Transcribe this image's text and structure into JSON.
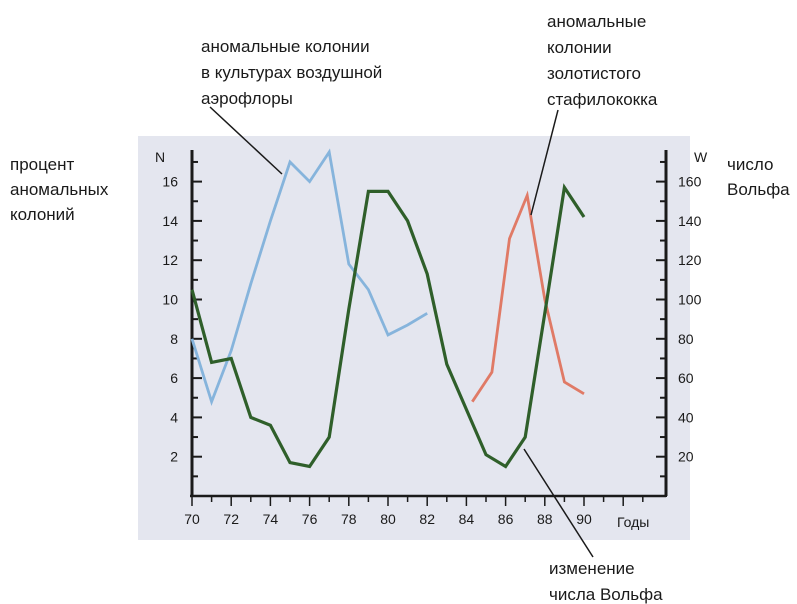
{
  "chart_data": {
    "type": "line",
    "x": [
      70,
      71,
      72,
      73,
      74,
      75,
      76,
      77,
      78,
      79,
      80,
      81,
      82,
      83,
      84,
      85,
      86,
      87,
      88,
      89,
      90
    ],
    "x_ticks": [
      "70",
      "72",
      "74",
      "76",
      "78",
      "80",
      "82",
      "84",
      "86",
      "88",
      "90"
    ],
    "xlabel": "Годы",
    "xlim": [
      70,
      93
    ],
    "left_axis": {
      "unit": "N",
      "label": [
        "процент",
        "аномальных",
        "колоний"
      ],
      "ticks": [
        "2",
        "4",
        "6",
        "8",
        "10",
        "12",
        "14",
        "16"
      ],
      "ylim": [
        0,
        17.5
      ]
    },
    "right_axis": {
      "unit": "W",
      "label": [
        "число",
        "Вольфа"
      ],
      "ticks": [
        "20",
        "40",
        "60",
        "80",
        "100",
        "120",
        "140",
        "160"
      ],
      "ylim": [
        0,
        175
      ]
    },
    "series": [
      {
        "name": [
          "аномальные колонии",
          "в культурах воздушной",
          "аэрофлоры"
        ],
        "axis": "left",
        "color": "#86b4dc",
        "points": [
          [
            70,
            8.0
          ],
          [
            71,
            4.8
          ],
          [
            72,
            7.4
          ],
          [
            73,
            10.8
          ],
          [
            74,
            14.0
          ],
          [
            75,
            17.0
          ],
          [
            76,
            16.0
          ],
          [
            77,
            17.5
          ],
          [
            78,
            11.8
          ],
          [
            79,
            10.5
          ],
          [
            80,
            8.2
          ],
          [
            81,
            8.7
          ],
          [
            82,
            9.3
          ]
        ]
      },
      {
        "name": [
          "аномальные",
          "колонии",
          "золотистого",
          "стафилококка"
        ],
        "axis": "left",
        "color": "#e07a66",
        "points": [
          [
            84.3,
            4.8
          ],
          [
            85.3,
            6.3
          ],
          [
            86.2,
            13.1
          ],
          [
            87.1,
            15.3
          ],
          [
            88,
            10.0
          ],
          [
            89,
            5.8
          ],
          [
            90,
            5.2
          ]
        ]
      },
      {
        "name": [
          "изменение",
          "числа Вольфа"
        ],
        "axis": "right",
        "color": "#2f5f2a",
        "points": [
          [
            70,
            105
          ],
          [
            71,
            68
          ],
          [
            72,
            70
          ],
          [
            73,
            40
          ],
          [
            74,
            36
          ],
          [
            75,
            17
          ],
          [
            76,
            15
          ],
          [
            77,
            30
          ],
          [
            78,
            95
          ],
          [
            79,
            155
          ],
          [
            80,
            155
          ],
          [
            81,
            140
          ],
          [
            82,
            113
          ],
          [
            83,
            67
          ],
          [
            84,
            44
          ],
          [
            85,
            21
          ],
          [
            86,
            15
          ],
          [
            87,
            30
          ],
          [
            88,
            93
          ],
          [
            89,
            157
          ],
          [
            90,
            142
          ]
        ]
      }
    ],
    "grid": false,
    "legend": "annotations with leader lines"
  }
}
